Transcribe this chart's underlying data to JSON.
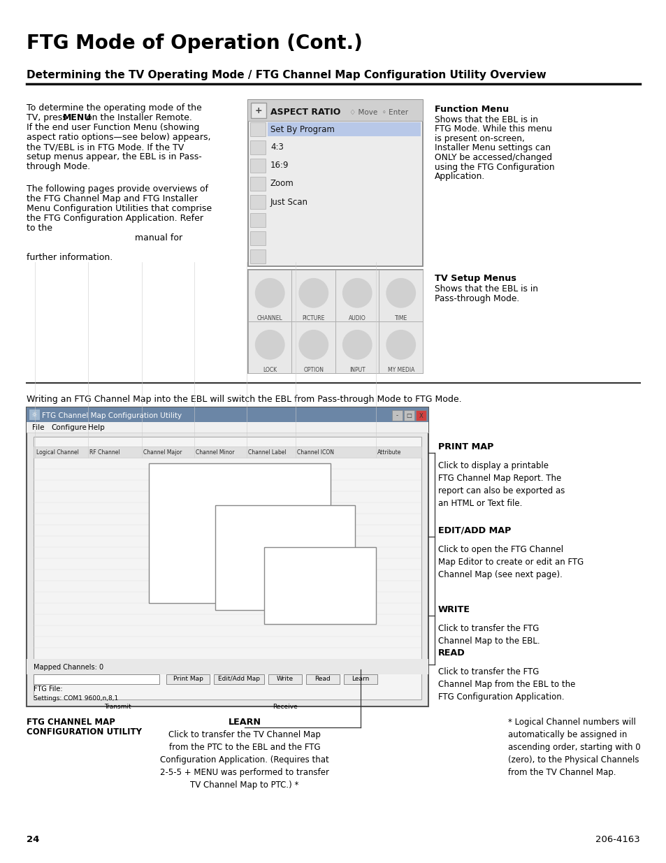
{
  "title": "FTG Mode of Operation (Cont.)",
  "subtitle": "Determining the TV Operating Mode / FTG Channel Map Configuration Utility Overview",
  "bg_color": "#ffffff",
  "text_color": "#000000",
  "page_number": "24",
  "page_code": "206-4163",
  "func_menu_label": "Function Menu",
  "func_menu_desc": "Shows that the EBL is in\nFTG Mode. While this menu\nis present on-screen,\nInstaller Menu settings can\nONLY be accessed/changed\nusing the FTG Configuration\nApplication.",
  "tv_setup_label": "TV Setup Menus",
  "tv_setup_desc": "Shows that the EBL is in\nPass-through Mode.",
  "divider_text": "Writing an FTG Channel Map into the EBL will switch the EBL from Pass-through Mode to FTG Mode.",
  "print_map_label": "PRINT MAP",
  "print_map_desc": "Click to display a printable\nFTG Channel Map Report. The\nreport can also be exported as\nan HTML or Text file.",
  "edit_add_label": "EDIT/ADD MAP",
  "edit_add_desc": "Click to open the FTG Channel\nMap Editor to create or edit an FTG\nChannel Map (see next page).",
  "write_label": "WRITE",
  "write_desc": "Click to transfer the FTG\nChannel Map to the EBL.",
  "read_label": "READ",
  "read_desc": "Click to transfer the FTG\nChannel Map from the EBL to the\nFTG Configuration Application.",
  "learn_label": "LEARN",
  "learn_desc": "Click to transfer the TV Channel Map\nfrom the PTC to the EBL and the FTG\nConfiguration Application. (Requires that\n2-5-5 + MENU was performed to transfer\nTV Channel Map to PTC.) *",
  "ftg_label": "FTG CHANNEL MAP\nCONFIGURATION UTILITY",
  "footnote": "* Logical Channel numbers will\nautomatically be assigned in\nascending order, starting with 0\n(zero), to the Physical Channels\nfrom the TV Channel Map."
}
